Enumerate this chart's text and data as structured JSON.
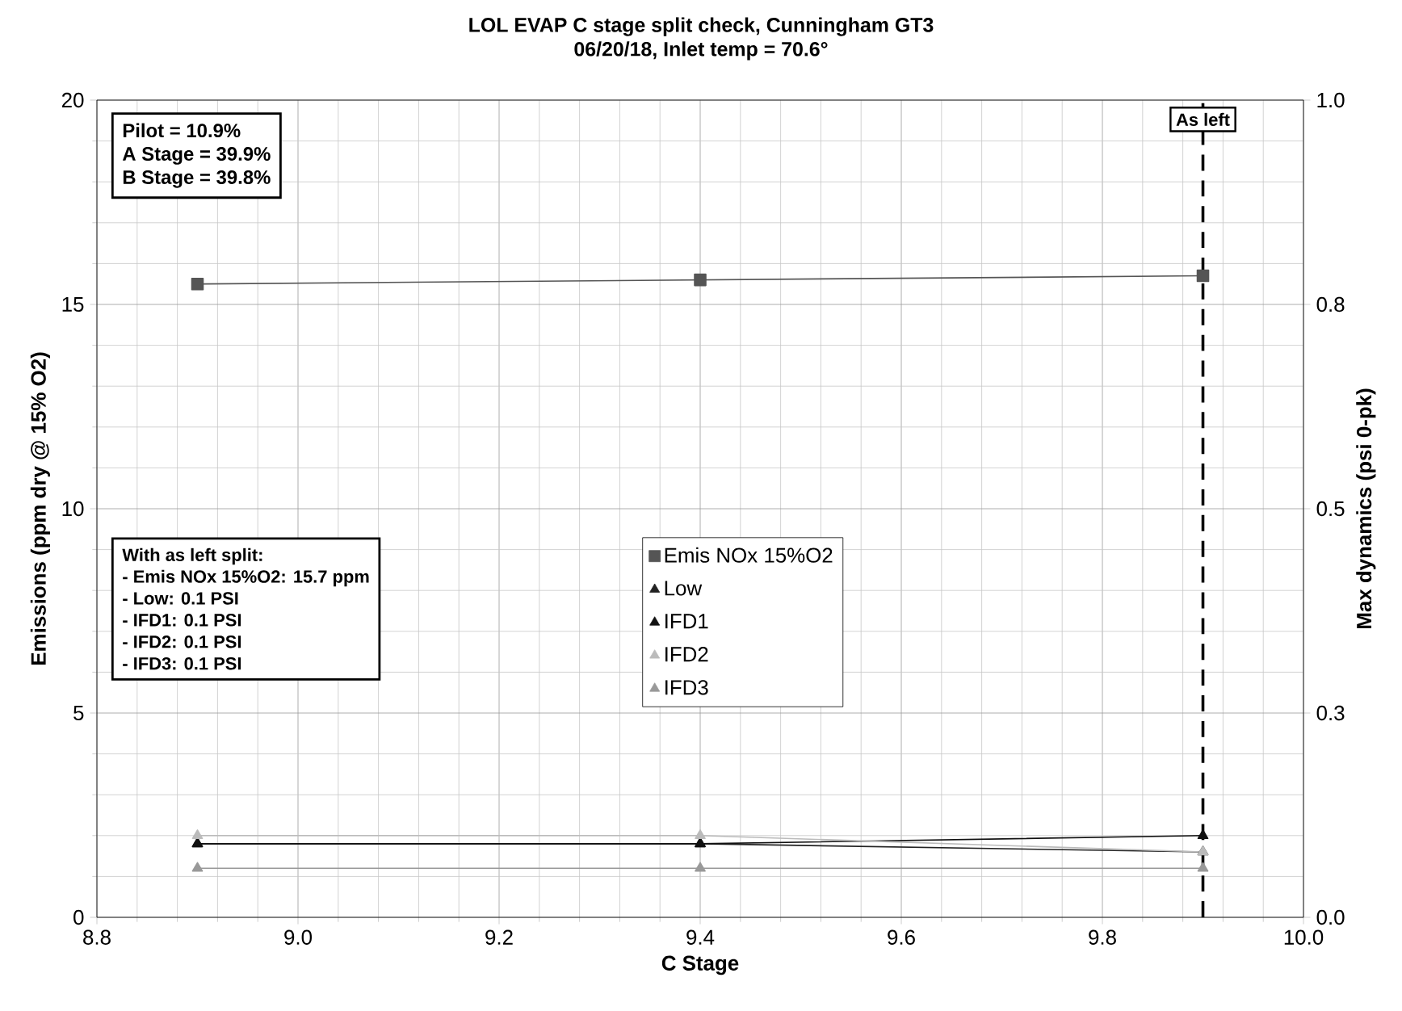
{
  "chart_data": {
    "type": "line",
    "title": "LOL EVAP C stage split check, Cunningham GT3",
    "subtitle": "06/20/18, Inlet temp = 70.6°",
    "xlabel": "C Stage",
    "ylabel": "Emissions (ppm dry @ 15% O2)",
    "y2label": "Max dynamics (psi 0-pk)",
    "x": [
      8.9,
      9.4,
      9.9
    ],
    "series": [
      {
        "name": "Emis NOx 15%O2",
        "color": "#555555",
        "marker": "square",
        "values": [
          15.5,
          15.6,
          15.7
        ]
      },
      {
        "name": "Low",
        "color": "#222222",
        "marker": "triangle",
        "axis": "y2",
        "values": [
          0.09,
          0.09,
          0.08
        ]
      },
      {
        "name": "IFD1",
        "color": "#111111",
        "marker": "triangle",
        "axis": "y2",
        "values": [
          0.09,
          0.09,
          0.1
        ]
      },
      {
        "name": "IFD2",
        "color": "#bbbbbb",
        "marker": "triangle",
        "axis": "y2",
        "values": [
          0.1,
          0.1,
          0.08
        ]
      },
      {
        "name": "IFD3",
        "color": "#999999",
        "marker": "triangle",
        "axis": "y2",
        "values": [
          0.06,
          0.06,
          0.06
        ]
      }
    ],
    "xlim": [
      8.8,
      10.0
    ],
    "xticks": [
      8.8,
      {
        "value": 9,
        "label": "9.0"
      },
      9.2,
      9.4,
      9.6,
      9.8,
      {
        "value": 10,
        "label": "10.0"
      }
    ],
    "ylim": [
      0,
      20
    ],
    "yticks": [
      0,
      5,
      10,
      15,
      20
    ],
    "y2lim": [
      0,
      1.0
    ],
    "y2ticks": [
      {
        "value": 0,
        "label": "0.0"
      },
      {
        "value": 0.25,
        "label": "0.3"
      },
      0.5,
      {
        "value": 0.75,
        "label": "0.8"
      },
      {
        "value": 1,
        "label": "1.0"
      }
    ],
    "ref_lines": [
      {
        "axis": "x",
        "value": 9.9,
        "label": "As left",
        "color": "#000000",
        "line_style": "dashed"
      }
    ],
    "annotations": [
      "Pilot = 10.9%",
      "A Stage = 39.9%",
      "B Stage = 39.8%",
      "With as left split:",
      "- Emis NOx 15%O2:  15.7 ppm",
      "- Low: 0.1 PSI",
      "- IFD1: 0.1 PSI",
      "- IFD2: 0.1 PSI",
      "- IFD3: 0.1 PSI"
    ],
    "grid": true,
    "legend": "center",
    "line_style": "solid"
  }
}
